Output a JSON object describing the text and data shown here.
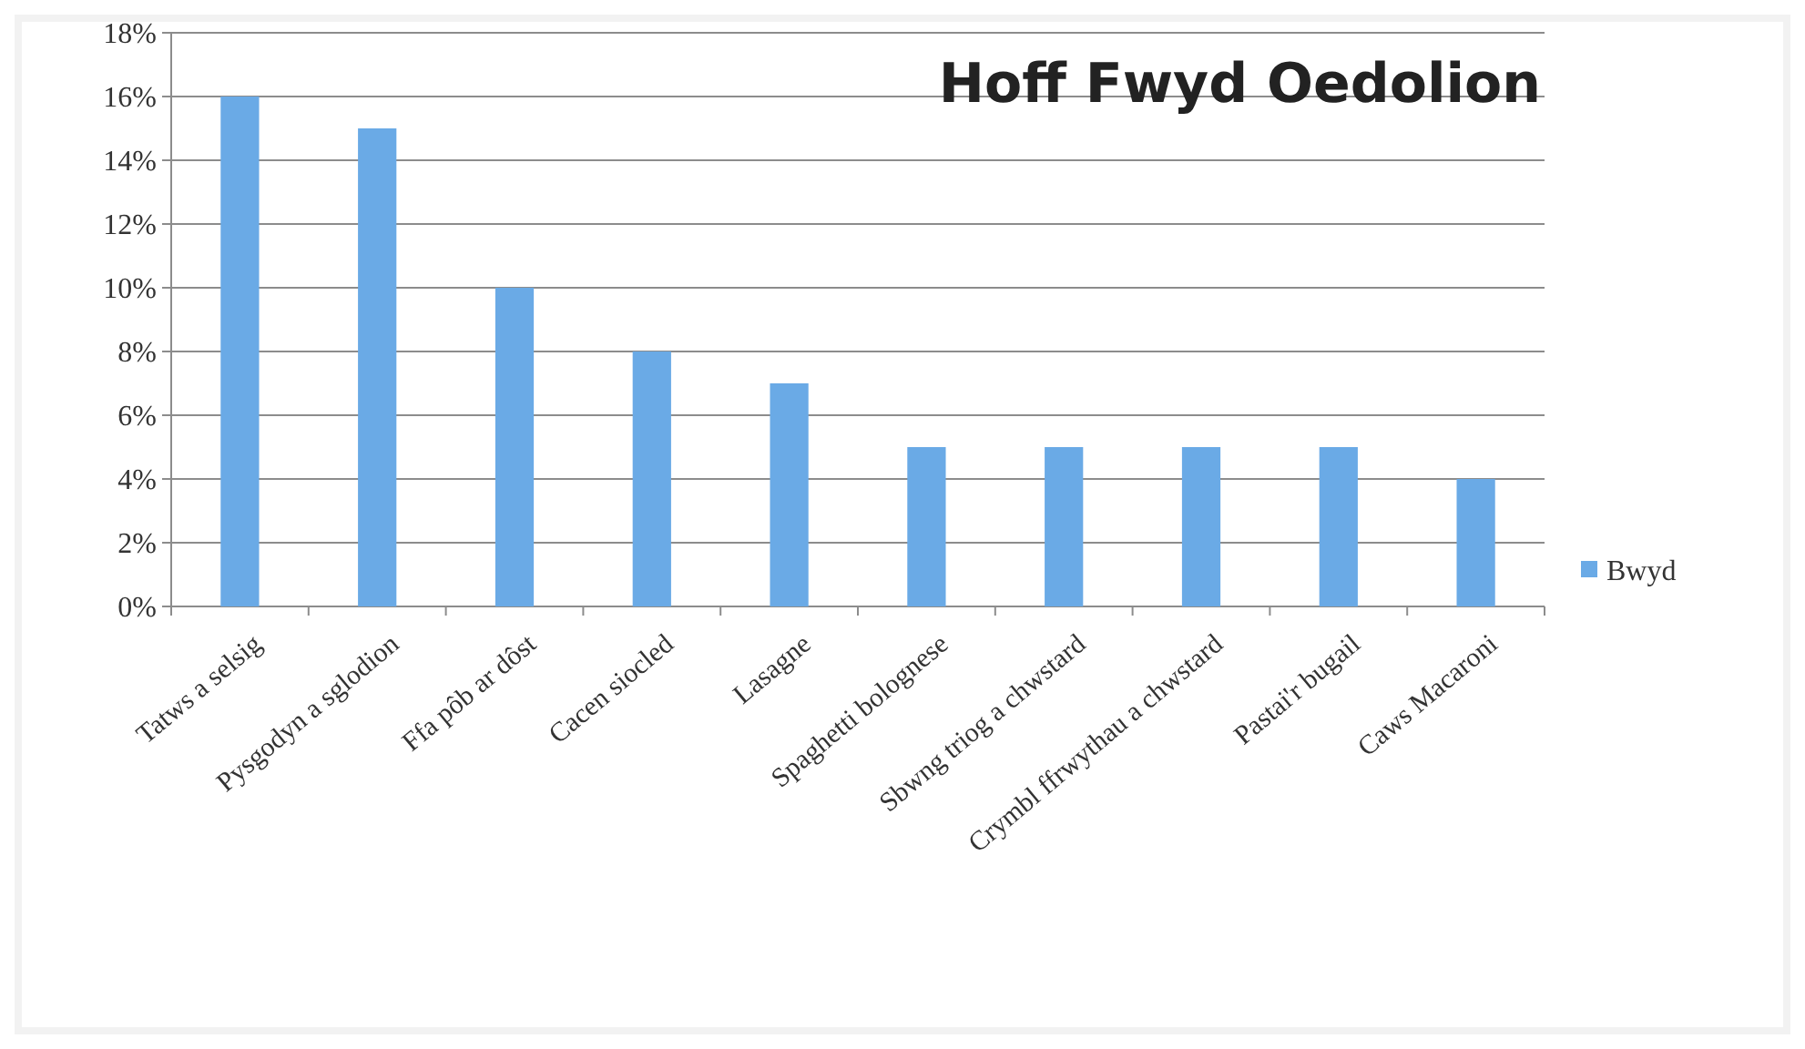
{
  "chart_data": {
    "type": "bar",
    "title": "Hoff Fwyd Oedolion",
    "categories": [
      "Tatws a selsig",
      "Pysgodyn a sglodion",
      "Ffa pôb ar dôst",
      "Cacen siocled",
      "Lasagne",
      "Spaghetti bolognese",
      "Sbwng triog a chwstard",
      "Crymbl ffrwythau a chwstard",
      "Pastai'r bugail",
      "Caws Macaroni"
    ],
    "series": [
      {
        "name": "Bwyd",
        "color": "#6aaae6",
        "values": [
          16,
          15,
          10,
          8,
          7,
          5,
          5,
          5,
          5,
          4
        ]
      }
    ],
    "ylim": [
      0,
      18
    ],
    "yticks": [
      {
        "value": 0,
        "label": "0%"
      },
      {
        "value": 2,
        "label": "2%"
      },
      {
        "value": 4,
        "label": "4%"
      },
      {
        "value": 6,
        "label": "6%"
      },
      {
        "value": 8,
        "label": "8%"
      },
      {
        "value": 10,
        "label": "10%"
      },
      {
        "value": 12,
        "label": "12%"
      },
      {
        "value": 14,
        "label": "14%"
      },
      {
        "value": 16,
        "label": "16%"
      },
      {
        "value": 18,
        "label": "18%"
      }
    ],
    "grid": "y",
    "legend": "right"
  }
}
